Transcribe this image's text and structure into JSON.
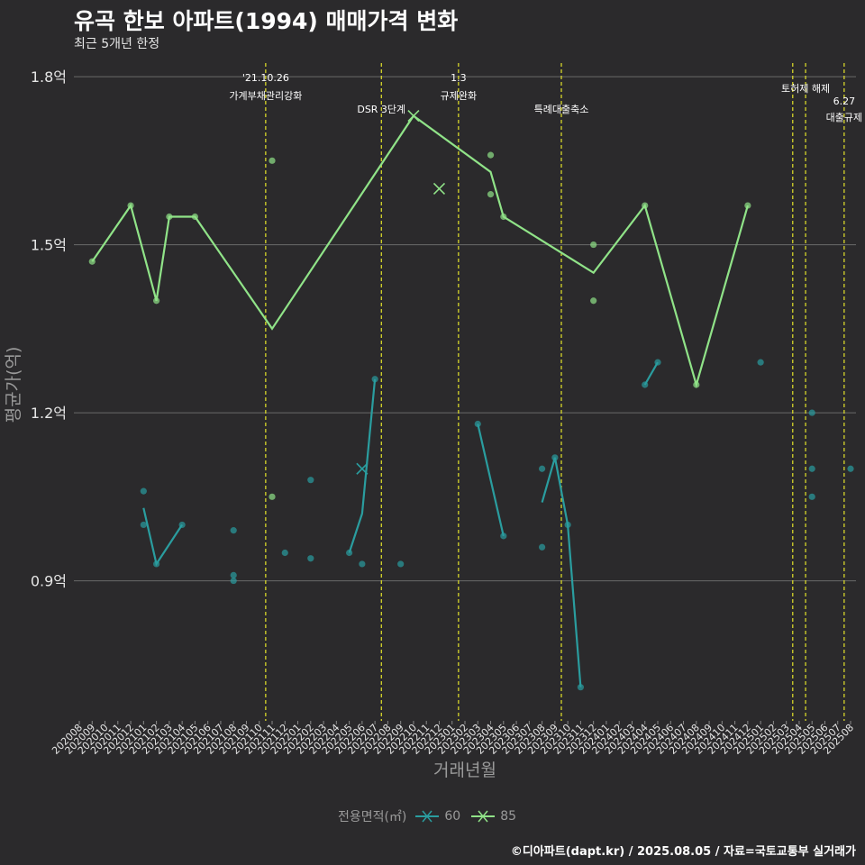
{
  "title": "유곡 한보 아파트(1994) 매매가격 변화",
  "subtitle": "최근 5개년 한정",
  "caption": "©디아파트(dapt.kr) / 2025.08.05 / 자료=국토교통부 실거래가",
  "legend": {
    "title": "전용면적(㎡)",
    "items": [
      {
        "label": "60",
        "color": "#2a9d9f"
      },
      {
        "label": "85",
        "color": "#90e388"
      }
    ]
  },
  "chart_data": {
    "type": "line",
    "xlabel": "거래년월",
    "ylabel": "평균가(억)",
    "ylim": [
      0.65,
      1.85
    ],
    "yticks": [
      {
        "value": 0.9,
        "label": "0.9억"
      },
      {
        "value": 1.2,
        "label": "1.2억"
      },
      {
        "value": 1.5,
        "label": "1.5억"
      },
      {
        "value": 1.8,
        "label": "1.8억"
      }
    ],
    "categories": [
      "202008",
      "202009",
      "202010",
      "202011",
      "202012",
      "202101",
      "202102",
      "202103",
      "202104",
      "202105",
      "202106",
      "202107",
      "202108",
      "202109",
      "202110",
      "202111",
      "202112",
      "202201",
      "202202",
      "202203",
      "202204",
      "202205",
      "202206",
      "202207",
      "202208",
      "202209",
      "202210",
      "202211",
      "202212",
      "202301",
      "202302",
      "202303",
      "202304",
      "202305",
      "202306",
      "202307",
      "202308",
      "202309",
      "202310",
      "202311",
      "202312",
      "202401",
      "202402",
      "202403",
      "202404",
      "202405",
      "202406",
      "202407",
      "202408",
      "202409",
      "202410",
      "202411",
      "202412",
      "202501",
      "202502",
      "202503",
      "202504",
      "202505",
      "202506",
      "202507",
      "202508"
    ],
    "events": [
      {
        "x": 14.5,
        "label": "'21.10.26\n가계부채관리강화"
      },
      {
        "x": 23.5,
        "label": "DSR 3단계"
      },
      {
        "x": 29.5,
        "label": "1.3\n규제완화"
      },
      {
        "x": 37.5,
        "label": "특례대출축소"
      },
      {
        "x": 55.5,
        "label": ""
      },
      {
        "x": 56.5,
        "label": "토허제 해제"
      },
      {
        "x": 59.5,
        "label": "6.27\n대출규제"
      }
    ],
    "event_color": "#e5e52a",
    "series": [
      {
        "name": "60",
        "color": "#2a9d9f",
        "lines": [
          [
            [
              5,
              1.03
            ],
            [
              6,
              0.93
            ],
            [
              8,
              1.0
            ]
          ],
          [
            [
              21,
              0.95
            ],
            [
              22,
              1.02
            ],
            [
              23,
              1.26
            ]
          ],
          [
            [
              31,
              1.18
            ],
            [
              33,
              0.98
            ]
          ],
          [
            [
              36,
              1.04
            ],
            [
              37,
              1.12
            ],
            [
              38,
              1.0
            ],
            [
              39,
              0.71
            ]
          ],
          [
            [
              44,
              1.25
            ],
            [
              45,
              1.29
            ]
          ]
        ],
        "points": [
          [
            5,
            1.06
          ],
          [
            5,
            1.0
          ],
          [
            6,
            0.93
          ],
          [
            8,
            1.0
          ],
          [
            12,
            0.99
          ],
          [
            12,
            0.91
          ],
          [
            12,
            0.9
          ],
          [
            16,
            0.95
          ],
          [
            18,
            1.08
          ],
          [
            18,
            0.94
          ],
          [
            21,
            0.95
          ],
          [
            22,
            0.93
          ],
          [
            23,
            1.26
          ],
          [
            25,
            0.93
          ],
          [
            31,
            1.18
          ],
          [
            33,
            0.98
          ],
          [
            36,
            1.1
          ],
          [
            36,
            0.96
          ],
          [
            37,
            1.12
          ],
          [
            38,
            1.0
          ],
          [
            39,
            0.71
          ],
          [
            44,
            1.25
          ],
          [
            45,
            1.29
          ],
          [
            53,
            1.29
          ],
          [
            57,
            1.2
          ],
          [
            57,
            1.1
          ],
          [
            57,
            1.05
          ],
          [
            60,
            1.1
          ]
        ],
        "cross_points": [
          [
            22,
            1.1
          ]
        ]
      },
      {
        "name": "85",
        "color": "#90e388",
        "lines": [
          [
            [
              1,
              1.47
            ],
            [
              4,
              1.57
            ],
            [
              6,
              1.4
            ],
            [
              7,
              1.55
            ],
            [
              9,
              1.55
            ],
            [
              15,
              1.35
            ],
            [
              26,
              1.73
            ],
            [
              32,
              1.63
            ],
            [
              33,
              1.55
            ],
            [
              40,
              1.45
            ],
            [
              44,
              1.57
            ],
            [
              48,
              1.25
            ],
            [
              52,
              1.57
            ]
          ]
        ],
        "points": [
          [
            1,
            1.47
          ],
          [
            4,
            1.57
          ],
          [
            6,
            1.4
          ],
          [
            7,
            1.55
          ],
          [
            9,
            1.55
          ],
          [
            15,
            1.65
          ],
          [
            15,
            1.05
          ],
          [
            32,
            1.66
          ],
          [
            32,
            1.59
          ],
          [
            33,
            1.55
          ],
          [
            40,
            1.5
          ],
          [
            40,
            1.4
          ],
          [
            44,
            1.57
          ],
          [
            48,
            1.25
          ],
          [
            52,
            1.57
          ]
        ],
        "cross_points": [
          [
            26,
            1.73
          ],
          [
            28,
            1.6
          ]
        ]
      }
    ]
  }
}
